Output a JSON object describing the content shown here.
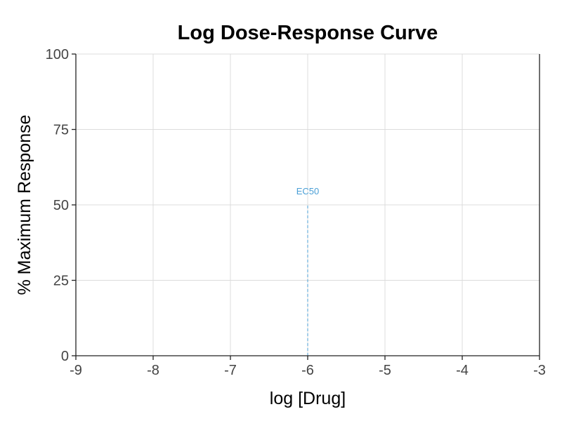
{
  "chart_data": {
    "type": "line",
    "title": "Log Dose-Response Curve",
    "xlabel": "log [Drug]",
    "ylabel": "% Maximum Response",
    "xlim": [
      -9,
      -3
    ],
    "ylim": [
      0,
      100
    ],
    "x_ticks": [
      -9,
      -8,
      -7,
      -6,
      -5,
      -4,
      -3
    ],
    "y_ticks": [
      0,
      25,
      50,
      75,
      100
    ],
    "grid": true,
    "series": [],
    "annotations": [
      {
        "type": "vline",
        "label": "EC50",
        "x": -6,
        "y_from": 0,
        "y_to": 50,
        "color": "#4a9fd6",
        "style": "dashed"
      }
    ]
  }
}
